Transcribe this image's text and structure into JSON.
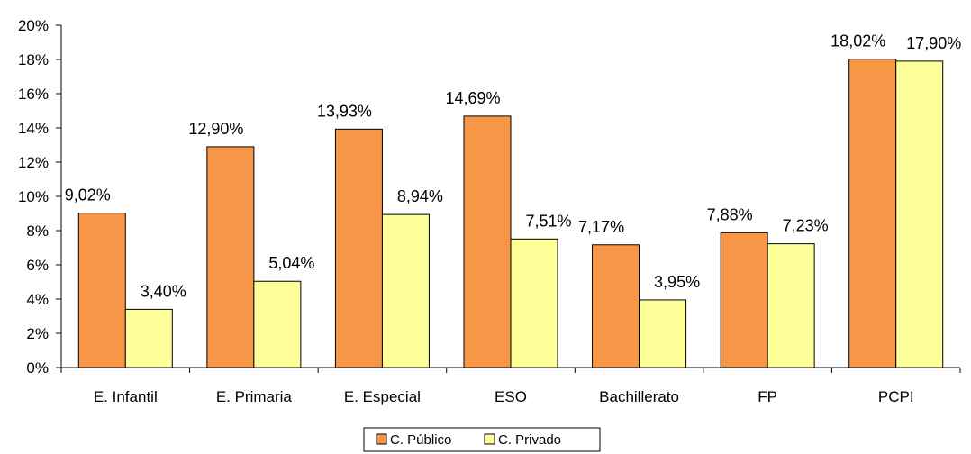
{
  "chart_data": {
    "type": "bar",
    "categories": [
      "E. Infantil",
      "E. Primaria",
      "E. Especial",
      "ESO",
      "Bachillerato",
      "FP",
      "PCPI"
    ],
    "series": [
      {
        "name": "C. Público",
        "color": "#F79646",
        "values": [
          9.02,
          12.9,
          13.93,
          14.69,
          7.17,
          7.88,
          18.02
        ],
        "labels": [
          "9,02%",
          "12,90%",
          "13,93%",
          "14,69%",
          "7,17%",
          "7,88%",
          "18,02%"
        ]
      },
      {
        "name": "C. Privado",
        "color": "#FFFF99",
        "values": [
          3.4,
          5.04,
          8.94,
          7.51,
          3.95,
          7.23,
          17.9
        ],
        "labels": [
          "3,40%",
          "5,04%",
          "8,94%",
          "7,51%",
          "3,95%",
          "7,23%",
          "17,90%"
        ]
      }
    ],
    "ylim": [
      0,
      20
    ],
    "yticks": [
      "0%",
      "2%",
      "4%",
      "6%",
      "8%",
      "10%",
      "12%",
      "14%",
      "16%",
      "18%",
      "20%"
    ],
    "grid": false,
    "legend_position": "bottom"
  }
}
